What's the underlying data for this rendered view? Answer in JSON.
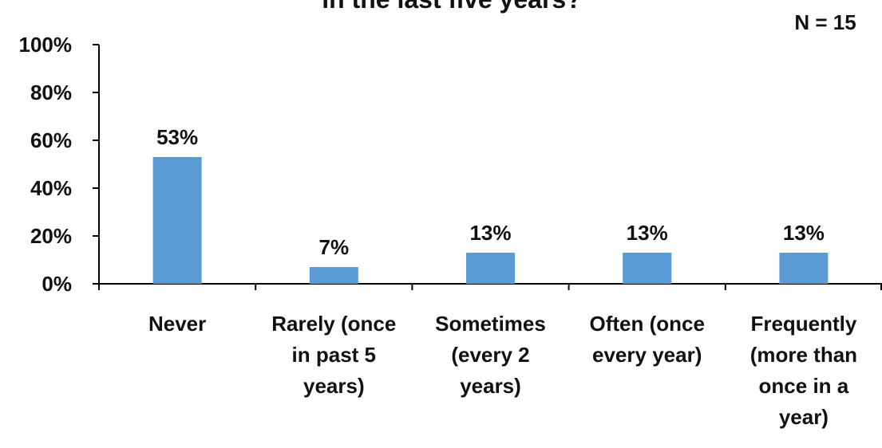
{
  "chart_data": {
    "type": "bar",
    "title": "in the last five years?",
    "note": "N = 15",
    "categories": [
      [
        "Never"
      ],
      [
        "Rarely (once",
        "in past 5",
        "years)"
      ],
      [
        "Sometimes",
        "(every 2",
        "years)"
      ],
      [
        "Often (once",
        "every year)"
      ],
      [
        "Frequently",
        "(more than",
        "once in a",
        "year)"
      ]
    ],
    "values": [
      53,
      7,
      13,
      13,
      13
    ],
    "data_labels": [
      "53%",
      "7%",
      "13%",
      "13%",
      "13%"
    ],
    "ylim": [
      0,
      100
    ],
    "yticks": [
      0,
      20,
      40,
      60,
      80,
      100
    ],
    "ytick_labels": [
      "0%",
      "20%",
      "40%",
      "60%",
      "80%",
      "100%"
    ],
    "bar_color": "#5b9bd5",
    "axis_color": "#000000",
    "grid": false
  }
}
